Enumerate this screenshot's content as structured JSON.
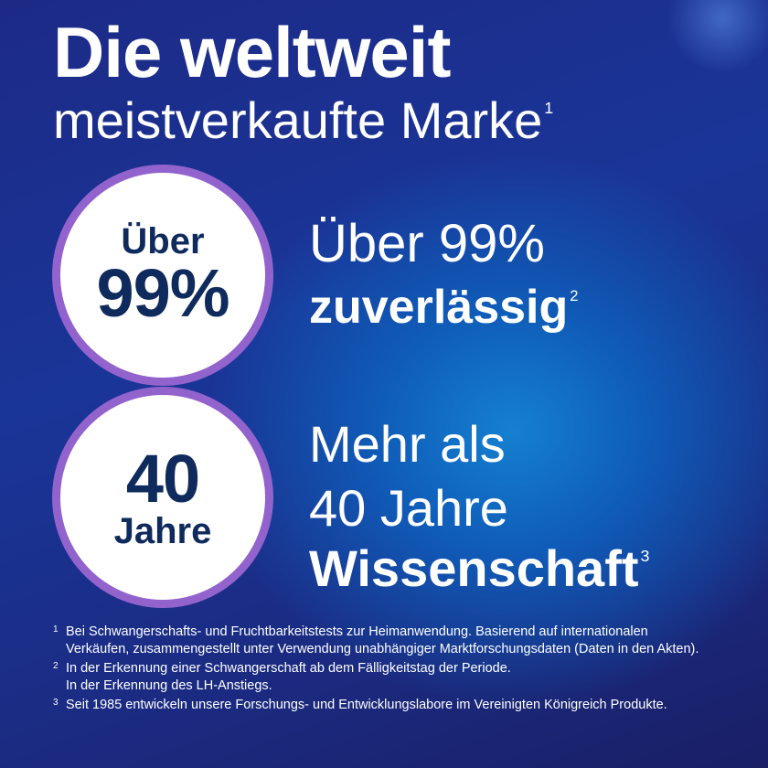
{
  "headline": {
    "line1": "Die weltweit",
    "line2": "meistverkaufte Marke",
    "line2_ref": "1"
  },
  "badges": [
    {
      "top": "Über",
      "bottom": "99%"
    },
    {
      "top": "40",
      "bottom": "Jahre"
    }
  ],
  "claims": {
    "c1_line1": "Über 99%",
    "c1_line2": "zuverlässig",
    "c1_ref": "2",
    "c2_line1": "Mehr als",
    "c2_line2": "40 Jahre",
    "c2_line3": "Wissenschaft",
    "c2_ref": "3"
  },
  "footnotes": [
    {
      "num": "1",
      "text": "Bei Schwangerschafts- und Fruchtbarkeitstests zur Heimanwendung. Basierend auf internationalen Verkäufen, zusammengestellt unter Verwendung unabhängiger Marktforschungsdaten (Daten in den Akten)."
    },
    {
      "num": "2",
      "text": "In der Erkennung einer Schwangerschaft ab dem Fälligkeitstag der Periode.",
      "text2": "In der Erkennung des LH-Anstiegs."
    },
    {
      "num": "3",
      "text": "Seit 1985 entwickeln unsere Forschungs- und Entwicklungslabore im Vereinigten Königreich Produkte."
    }
  ],
  "colors": {
    "circle_border": "#9263cc",
    "badge_text": "#0f2a5c",
    "background": "#1a3598"
  }
}
